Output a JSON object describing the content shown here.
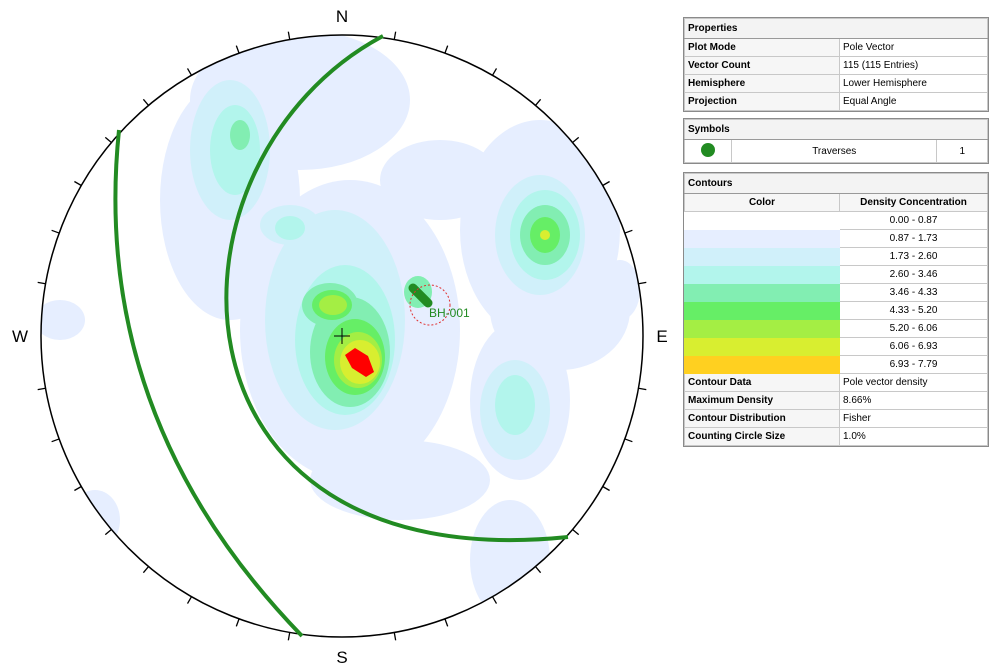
{
  "stereonet": {
    "directions": {
      "north": "N",
      "east": "E",
      "south": "S",
      "west": "W"
    },
    "label": "BH-001"
  },
  "properties": {
    "title": "Properties",
    "rows": [
      [
        "Plot Mode",
        "Pole Vector"
      ],
      [
        "Vector Count",
        "115 (115 Entries)"
      ],
      [
        "Hemisphere",
        "Lower Hemisphere"
      ],
      [
        "Projection",
        "Equal Angle"
      ]
    ]
  },
  "symbols": {
    "title": "Symbols",
    "color": "#228b22",
    "rows": [
      [
        "Traverses",
        "1"
      ]
    ]
  },
  "contours": {
    "title": "Contours",
    "header": [
      "Color",
      "Density Concentration"
    ],
    "bins": [
      {
        "color": "#ffffff",
        "range": "0.00 - 0.87"
      },
      {
        "color": "#e6eeff",
        "range": "0.87 - 1.73"
      },
      {
        "color": "#d0f0fa",
        "range": "1.73 - 2.60"
      },
      {
        "color": "#b2f5ec",
        "range": "2.60 - 3.46"
      },
      {
        "color": "#82eeb2",
        "range": "3.46 - 4.33"
      },
      {
        "color": "#66ee66",
        "range": "4.33 - 5.20"
      },
      {
        "color": "#a4ee44",
        "range": "5.20 - 6.06"
      },
      {
        "color": "#d8ee30",
        "range": "6.06 - 6.93"
      },
      {
        "color": "#ffd020",
        "range": "6.93 - 7.79"
      }
    ],
    "rows": [
      [
        "Contour Data",
        "Pole vector density"
      ],
      [
        "Maximum Density",
        "8.66%"
      ],
      [
        "Contour Distribution",
        "Fisher"
      ],
      [
        "Counting Circle Size",
        "1.0%"
      ]
    ]
  }
}
